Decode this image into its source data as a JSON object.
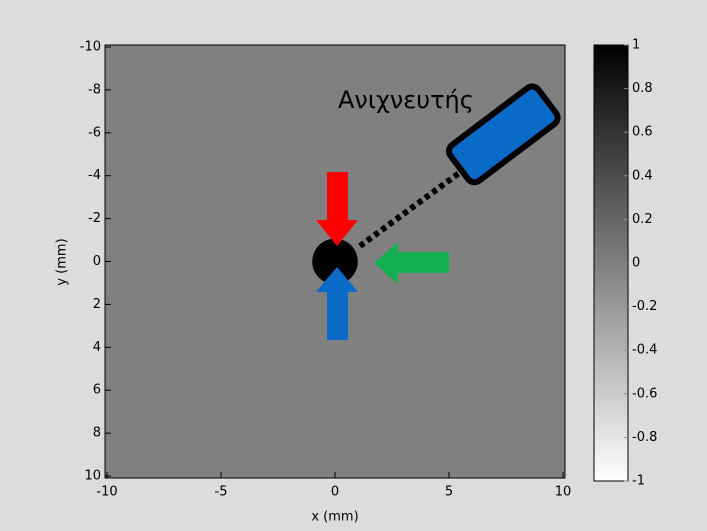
{
  "chart_data": {
    "type": "image",
    "xlabel": "x (mm)",
    "ylabel": "y (mm)",
    "xlim": [
      -10,
      10
    ],
    "xticks": [
      -10,
      -5,
      0,
      5,
      10
    ],
    "ylim": [
      -10,
      10
    ],
    "yticks": [
      -10,
      -8,
      -6,
      -4,
      -2,
      0,
      2,
      4,
      6,
      8,
      10
    ],
    "y_reversed": true,
    "background": 0,
    "shapes": [
      {
        "x": 0,
        "y": 0,
        "radius": 1,
        "value": 1
      }
    ],
    "clim": [
      -1,
      1
    ],
    "colorbar_ticks": [
      -1,
      -0.8,
      -0.6,
      -0.4,
      -0.2,
      0,
      0.2,
      0.4,
      0.6,
      0.8,
      1
    ],
    "annotation": "Ανιχνευτής"
  }
}
